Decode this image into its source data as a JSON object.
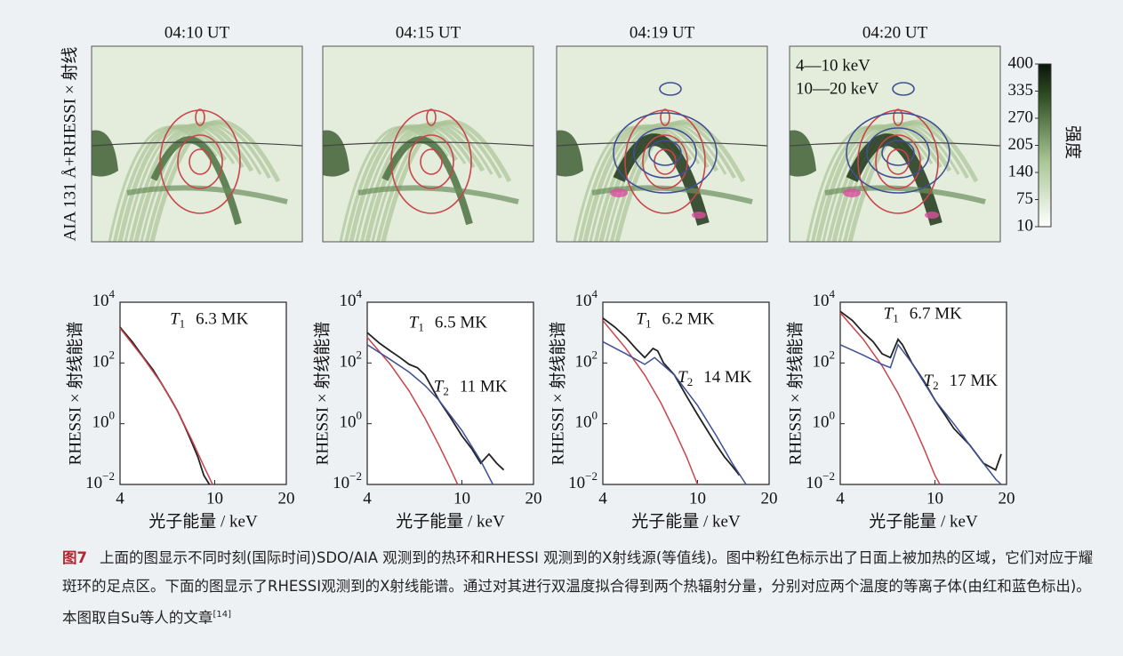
{
  "images": {
    "ylabel": "AIA 131 Å+RHESSI × 射线",
    "panels": [
      {
        "title": "04:10 UT"
      },
      {
        "title": "04:15 UT"
      },
      {
        "title": "04:19 UT"
      },
      {
        "title": "04:20 UT"
      }
    ],
    "legend": [
      {
        "label": "4—10 keV",
        "color": "#c9454a"
      },
      {
        "label": "10—20 keV",
        "color": "#3f4f96"
      }
    ],
    "colorbar": {
      "label": "强度",
      "lim": [
        10,
        400
      ],
      "ticks": [
        400,
        335,
        270,
        205,
        140,
        75,
        10
      ]
    }
  },
  "chart_data": [
    {
      "type": "line",
      "xlabel": "光子能量 / keV",
      "ylabel": "RHESSI × 射线能谱",
      "log_x": true,
      "log_y": true,
      "xlim": [
        4,
        20
      ],
      "ylim": [
        0.01,
        10000
      ],
      "xticks": [
        4,
        10,
        20
      ],
      "yticks": [
        {
          "value": 10000,
          "label": "10",
          "exponent": "4"
        },
        {
          "value": 100,
          "label": "10",
          "exponent": "2"
        },
        {
          "value": 1,
          "label": "10",
          "exponent": "0"
        },
        {
          "value": 0.01,
          "label": "10",
          "exponent": "−2"
        }
      ],
      "annotations": [
        {
          "symbol": "T",
          "subscript": "1",
          "text": "6.3 MK",
          "color": "#c9454a"
        }
      ],
      "series": [
        {
          "color": "#222222",
          "x": [
            4,
            4.5,
            5,
            5.5,
            6,
            6.5,
            7,
            7.5,
            8,
            8.5,
            9,
            9.5
          ],
          "values": [
            1500,
            500,
            160,
            60,
            20,
            7,
            2.5,
            0.8,
            0.25,
            0.08,
            0.02,
            0.01
          ]
        },
        {
          "color": "#c9454a",
          "x": [
            4,
            5,
            6,
            7,
            8,
            9,
            9.8
          ],
          "values": [
            1400,
            150,
            20,
            2.5,
            0.3,
            0.04,
            0.01
          ]
        }
      ]
    },
    {
      "type": "line",
      "xlabel": "光子能量 / keV",
      "ylabel": "RHESSI × 射线能谱",
      "log_x": true,
      "log_y": true,
      "xlim": [
        4,
        20
      ],
      "ylim": [
        0.01,
        10000
      ],
      "xticks": [
        4,
        10,
        20
      ],
      "yticks": [
        {
          "value": 10000,
          "label": "10",
          "exponent": "4"
        },
        {
          "value": 100,
          "label": "10",
          "exponent": "2"
        },
        {
          "value": 1,
          "label": "10",
          "exponent": "0"
        },
        {
          "value": 0.01,
          "label": "10",
          "exponent": "−2"
        }
      ],
      "annotations": [
        {
          "symbol": "T",
          "subscript": "1",
          "text": "6.5 MK",
          "color": "#c9454a"
        },
        {
          "symbol": "T",
          "subscript": "2",
          "text": "11 MK",
          "color": "#3f4f96"
        }
      ],
      "series": [
        {
          "color": "#222222",
          "x": [
            4,
            4.5,
            5,
            5.5,
            6,
            6.5,
            7,
            7.5,
            8,
            9,
            10,
            11,
            12,
            13,
            14,
            15
          ],
          "values": [
            1000,
            450,
            250,
            150,
            90,
            70,
            40,
            15,
            6,
            1.5,
            0.4,
            0.15,
            0.05,
            0.1,
            0.05,
            0.03
          ]
        },
        {
          "color": "#c9454a",
          "x": [
            4,
            5,
            6,
            7,
            8,
            9,
            9.6
          ],
          "values": [
            700,
            90,
            12,
            1.5,
            0.2,
            0.03,
            0.01
          ]
        },
        {
          "color": "#3f4f96",
          "x": [
            4,
            5,
            6,
            7,
            8,
            10,
            12,
            13.5
          ],
          "values": [
            400,
            130,
            50,
            18,
            6,
            0.6,
            0.06,
            0.01
          ]
        }
      ]
    },
    {
      "type": "line",
      "xlabel": "光子能量 / keV",
      "ylabel": "RHESSI × 射线能谱",
      "log_x": true,
      "log_y": true,
      "xlim": [
        4,
        20
      ],
      "ylim": [
        0.01,
        10000
      ],
      "xticks": [
        4,
        10,
        20
      ],
      "yticks": [
        {
          "value": 10000,
          "label": "10",
          "exponent": "4"
        },
        {
          "value": 100,
          "label": "10",
          "exponent": "2"
        },
        {
          "value": 1,
          "label": "10",
          "exponent": "0"
        },
        {
          "value": 0.01,
          "label": "10",
          "exponent": "−2"
        }
      ],
      "annotations": [
        {
          "symbol": "T",
          "subscript": "1",
          "text": "6.2 MK",
          "color": "#c9454a"
        },
        {
          "symbol": "T",
          "subscript": "2",
          "text": "14 MK",
          "color": "#3f4f96"
        }
      ],
      "series": [
        {
          "color": "#222222",
          "x": [
            4,
            4.5,
            5,
            5.5,
            6,
            6.5,
            6.8,
            7.2,
            8,
            9,
            10,
            11,
            12,
            13,
            14,
            15
          ],
          "values": [
            3000,
            1500,
            700,
            300,
            150,
            300,
            250,
            100,
            40,
            8,
            2,
            0.6,
            0.2,
            0.08,
            0.04,
            0.02
          ]
        },
        {
          "color": "#c9454a",
          "x": [
            4,
            5,
            6,
            7,
            8,
            9,
            10
          ],
          "values": [
            2500,
            300,
            40,
            5,
            0.6,
            0.08,
            0.01
          ]
        },
        {
          "color": "#3f4f96",
          "x": [
            4,
            5,
            6,
            6.6,
            8,
            10,
            12,
            14,
            16
          ],
          "values": [
            500,
            200,
            90,
            150,
            40,
            4,
            0.4,
            0.05,
            0.01
          ]
        }
      ]
    },
    {
      "type": "line",
      "xlabel": "光子能量 / keV",
      "ylabel": "RHESSI × 射线能谱",
      "log_x": true,
      "log_y": true,
      "xlim": [
        4,
        20
      ],
      "ylim": [
        0.01,
        10000
      ],
      "xticks": [
        4,
        10,
        20
      ],
      "yticks": [
        {
          "value": 10000,
          "label": "10",
          "exponent": "4"
        },
        {
          "value": 100,
          "label": "10",
          "exponent": "2"
        },
        {
          "value": 1,
          "label": "10",
          "exponent": "0"
        },
        {
          "value": 0.01,
          "label": "10",
          "exponent": "−2"
        }
      ],
      "annotations": [
        {
          "symbol": "T",
          "subscript": "1",
          "text": "6.7 MK",
          "color": "#c9454a"
        },
        {
          "symbol": "T",
          "subscript": "2",
          "text": "17 MK",
          "color": "#3f4f96"
        }
      ],
      "series": [
        {
          "color": "#222222",
          "x": [
            4,
            4.5,
            5,
            5.5,
            6,
            6.5,
            7,
            7.3,
            8,
            9,
            10,
            11,
            12,
            14,
            16,
            18,
            19
          ],
          "values": [
            5000,
            2500,
            1000,
            500,
            200,
            150,
            600,
            400,
            100,
            25,
            6,
            2,
            0.7,
            0.2,
            0.05,
            0.03,
            0.1
          ]
        },
        {
          "color": "#c9454a",
          "x": [
            4,
            5,
            6,
            7,
            8,
            9,
            10,
            10.5
          ],
          "values": [
            4500,
            600,
            80,
            10,
            1.2,
            0.15,
            0.02,
            0.01
          ]
        },
        {
          "color": "#3f4f96",
          "x": [
            4,
            5,
            6,
            6.5,
            7,
            8,
            10,
            12,
            14,
            16,
            18,
            19
          ],
          "values": [
            400,
            180,
            90,
            70,
            400,
            100,
            6,
            1,
            0.2,
            0.05,
            0.015,
            0.01
          ]
        }
      ]
    }
  ],
  "caption": {
    "label": "图7",
    "text": "上面的图显示不同时刻(国际时间)SDO/AIA 观测到的热环和RHESSI 观测到的X射线源(等值线)。图中粉红色标示出了日面上被加热的区域，它们对应于耀斑环的足点区。下面的图显示了RHESSI观测到的X射线能谱。通过对其进行双温度拟合得到两个热辐射分量，分别对应两个温度的等离子体(由红和蓝色标出)。本图取自Su等人的文章",
    "ref": "[14]"
  }
}
